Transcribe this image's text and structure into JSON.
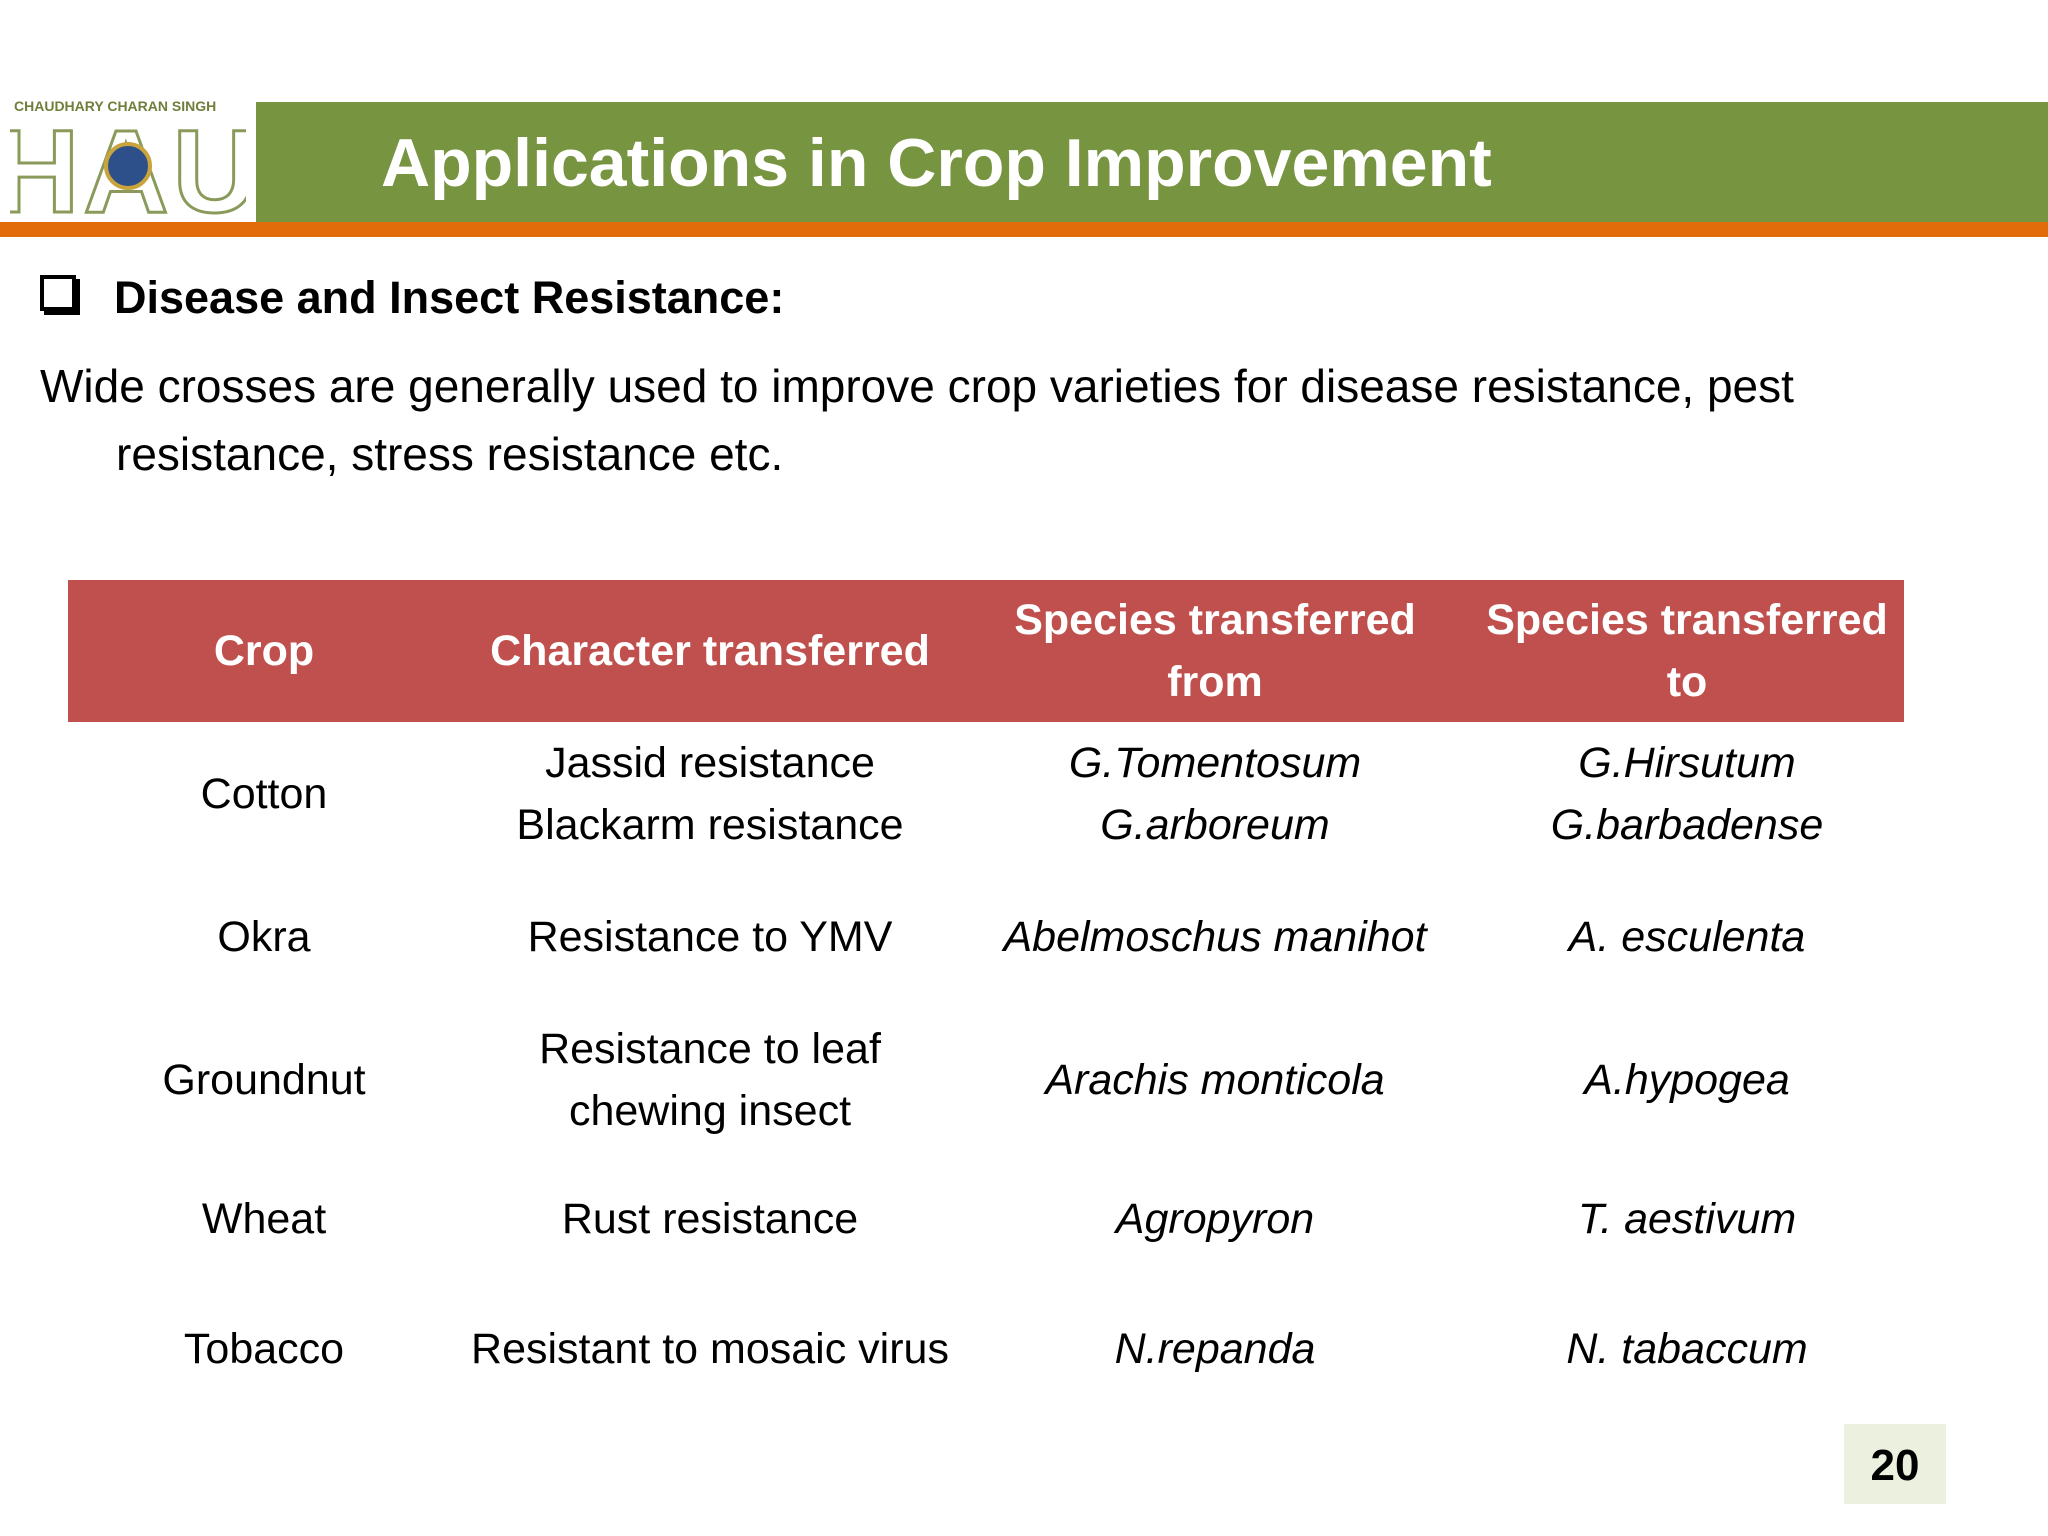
{
  "header": {
    "logo_caption": "CHAUDHARY CHARAN SINGH",
    "logo_text": "HAU",
    "title": "Applications in Crop Improvement"
  },
  "heading": "Disease and Insect Resistance:",
  "paragraph": "Wide crosses are generally used to improve crop varieties for disease resistance, pest resistance, stress resistance etc.",
  "table": {
    "columns": [
      "Crop",
      "Character transferred",
      "Species transferred from",
      "Species transferred to"
    ],
    "rows": [
      [
        [
          "Cotton"
        ],
        [
          "Jassid resistance",
          "Blackarm resistance"
        ],
        [
          "G.Tomentosum",
          "G.arboreum"
        ],
        [
          "G.Hirsutum",
          "G.barbadense"
        ]
      ],
      [
        [
          "Okra"
        ],
        [
          "Resistance to YMV"
        ],
        [
          "Abelmoschus manihot"
        ],
        [
          "A. esculenta"
        ]
      ],
      [
        [
          "Groundnut"
        ],
        [
          "Resistance to leaf chewing insect"
        ],
        [
          "Arachis monticola"
        ],
        [
          "A.hypogea"
        ]
      ],
      [
        [
          "Wheat"
        ],
        [
          "Rust resistance"
        ],
        [
          "Agropyron"
        ],
        [
          "T. aestivum"
        ]
      ],
      [
        [
          "Tobacco"
        ],
        [
          "Resistant to mosaic virus"
        ],
        [
          "N.repanda"
        ],
        [
          "N. tabaccum"
        ]
      ]
    ]
  },
  "page_number": "20"
}
